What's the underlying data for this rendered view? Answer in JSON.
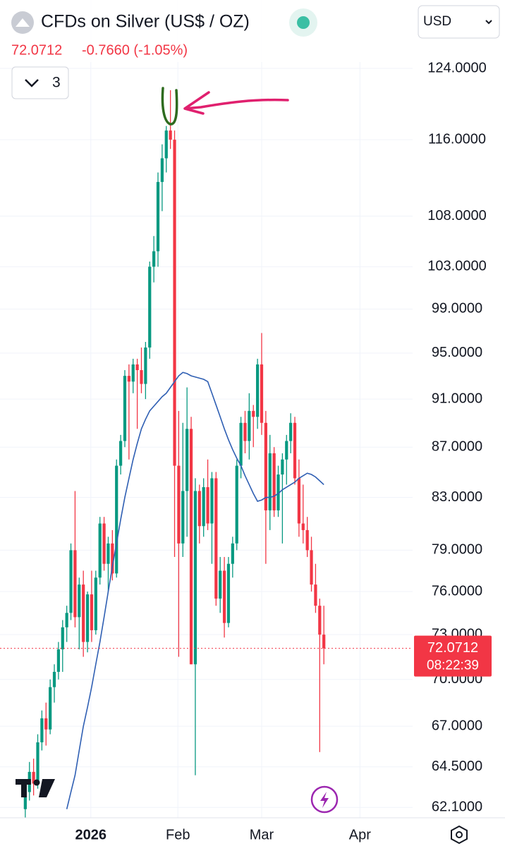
{
  "chart_data": {
    "type": "candlestick",
    "title": "CFDs on Silver (US$ / OZ)",
    "last_price": 72.0712,
    "change": "-0.7660 (-1.05%)",
    "currency": "USD",
    "indicator_count": 3,
    "countdown": "08:22:39",
    "up_color": "#089981",
    "down_color": "#f23645",
    "log_scale": true,
    "grid": true,
    "open": [
      62.0,
      63.0,
      64.2,
      63.5,
      66.0,
      67.5,
      66.8,
      69.5,
      70.5,
      72.0,
      73.5,
      74.5,
      79.0,
      74.2,
      76.5,
      72.5,
      75.8,
      73.3,
      77.0,
      81.0,
      78.0,
      79.5,
      77.3,
      85.5,
      87.5,
      93.0,
      92.5,
      94.0,
      93.5,
      92.3,
      95.5,
      103.0,
      104.5,
      111.5,
      114.0,
      117.0,
      116.0,
      85.5,
      79.5,
      83.5,
      88.5,
      71.0,
      83.5,
      80.8,
      83.8,
      81.0,
      84.5,
      75.5,
      77.5,
      73.8,
      78.0,
      79.5,
      85.5,
      89.0,
      87.5,
      90.0,
      89.5,
      94.0,
      89.0,
      82.0,
      86.5,
      82.0,
      84.8,
      86.0,
      87.5,
      89.0,
      84.5,
      81.0,
      80.5,
      79.0,
      76.5,
      75.0,
      73.0
    ],
    "high": [
      63.5,
      64.8,
      65.0,
      66.5,
      68.0,
      68.5,
      70.0,
      71.0,
      72.5,
      74.0,
      75.0,
      79.5,
      83.5,
      77.0,
      77.5,
      76.0,
      77.5,
      77.5,
      81.5,
      81.5,
      80.0,
      80.5,
      86.0,
      88.0,
      93.5,
      94.0,
      94.5,
      94.5,
      95.5,
      96.0,
      103.5,
      106.0,
      112.5,
      115.5,
      117.5,
      121.5,
      117.0,
      90.0,
      89.0,
      92.0,
      89.5,
      84.5,
      84.0,
      84.5,
      86.0,
      85.0,
      85.0,
      78.5,
      78.5,
      78.5,
      80.0,
      86.0,
      89.5,
      90.0,
      91.5,
      90.5,
      94.5,
      96.8,
      90.0,
      88.0,
      87.0,
      85.5,
      86.5,
      88.0,
      89.8,
      89.5,
      86.0,
      84.0,
      81.5,
      80.0,
      78.0,
      75.5,
      75.0
    ],
    "low": [
      61.5,
      62.5,
      62.8,
      63.2,
      65.5,
      65.8,
      66.5,
      68.5,
      70.0,
      70.5,
      72.5,
      74.0,
      73.5,
      72.0,
      71.5,
      71.8,
      72.5,
      73.0,
      76.5,
      77.5,
      76.0,
      76.8,
      77.0,
      84.8,
      87.0,
      86.0,
      91.5,
      88.5,
      91.5,
      91.0,
      94.5,
      101.5,
      103.0,
      108.5,
      112.5,
      115.0,
      78.5,
      71.5,
      78.5,
      80.0,
      71.0,
      64.0,
      79.5,
      80.0,
      80.5,
      78.0,
      75.0,
      74.5,
      72.8,
      73.5,
      77.0,
      79.0,
      84.5,
      86.5,
      86.0,
      87.0,
      88.5,
      88.0,
      78.0,
      80.5,
      81.5,
      81.5,
      79.5,
      84.0,
      86.5,
      84.0,
      80.0,
      79.5,
      78.5,
      76.0,
      74.5,
      65.4,
      71.0
    ],
    "close": [
      63.0,
      64.2,
      63.5,
      66.0,
      67.5,
      66.8,
      69.5,
      70.5,
      72.0,
      73.5,
      74.5,
      79.0,
      74.2,
      76.5,
      72.5,
      75.8,
      73.3,
      77.0,
      81.0,
      78.0,
      79.5,
      77.3,
      85.5,
      87.5,
      93.0,
      92.5,
      94.0,
      93.5,
      92.3,
      95.5,
      103.0,
      104.5,
      111.5,
      114.0,
      117.0,
      116.0,
      85.5,
      79.5,
      83.5,
      88.5,
      71.0,
      83.5,
      80.8,
      83.8,
      81.0,
      84.5,
      75.5,
      77.5,
      73.8,
      78.0,
      79.5,
      85.5,
      89.0,
      87.5,
      90.0,
      89.5,
      94.0,
      89.0,
      82.0,
      86.5,
      82.0,
      84.8,
      86.0,
      87.5,
      89.0,
      84.5,
      81.0,
      80.5,
      79.0,
      76.5,
      75.0,
      73.0,
      72.0712
    ],
    "moving_average": {
      "color": "#2f5fb3",
      "values": [
        null,
        null,
        null,
        null,
        null,
        null,
        null,
        null,
        null,
        null,
        62.0,
        63.0,
        64.0,
        65.5,
        67.0,
        68.2,
        69.5,
        71.0,
        72.5,
        74.2,
        76.0,
        77.8,
        79.5,
        81.3,
        83.0,
        84.5,
        86.0,
        87.3,
        88.5,
        89.3,
        90.0,
        90.4,
        90.8,
        91.2,
        91.5,
        92.0,
        92.5,
        93.0,
        93.3,
        93.2,
        93.0,
        92.9,
        92.8,
        92.7,
        92.5,
        91.5,
        90.5,
        89.5,
        88.5,
        87.6,
        86.8,
        86.1,
        85.5,
        84.7,
        84.0,
        83.3,
        82.7,
        82.8,
        83.0,
        83.0,
        83.1,
        83.3,
        83.6,
        83.8,
        84.0,
        84.2,
        84.5,
        84.7,
        84.9,
        84.8,
        84.6,
        84.3,
        84.0
      ]
    },
    "xlim": [
      -6.1,
      93.4
    ],
    "xticks": [
      {
        "value": 15.8,
        "label": "2026"
      },
      {
        "value": 36.8,
        "label": "Feb"
      },
      {
        "value": 57,
        "label": "Mar"
      },
      {
        "value": 80.7,
        "label": "Apr"
      }
    ],
    "ylim": [
      61.5,
      132.2
    ],
    "yticks": [
      {
        "value": 124,
        "label": "124.0000"
      },
      {
        "value": 116,
        "label": "116.0000"
      },
      {
        "value": 108,
        "label": "108.0000"
      },
      {
        "value": 103,
        "label": "103.0000"
      },
      {
        "value": 99,
        "label": "99.0000"
      },
      {
        "value": 95,
        "label": "95.0000"
      },
      {
        "value": 91,
        "label": "91.0000"
      },
      {
        "value": 87,
        "label": "87.0000"
      },
      {
        "value": 83,
        "label": "83.0000"
      },
      {
        "value": 79,
        "label": "79.0000"
      },
      {
        "value": 76,
        "label": "76.0000"
      },
      {
        "value": 73,
        "label": "73.0000"
      },
      {
        "value": 70,
        "label": "70.0000"
      },
      {
        "value": 67,
        "label": "67.0000"
      },
      {
        "value": 64.5,
        "label": "64.5000"
      },
      {
        "value": 62.1,
        "label": "62.1000"
      }
    ]
  }
}
